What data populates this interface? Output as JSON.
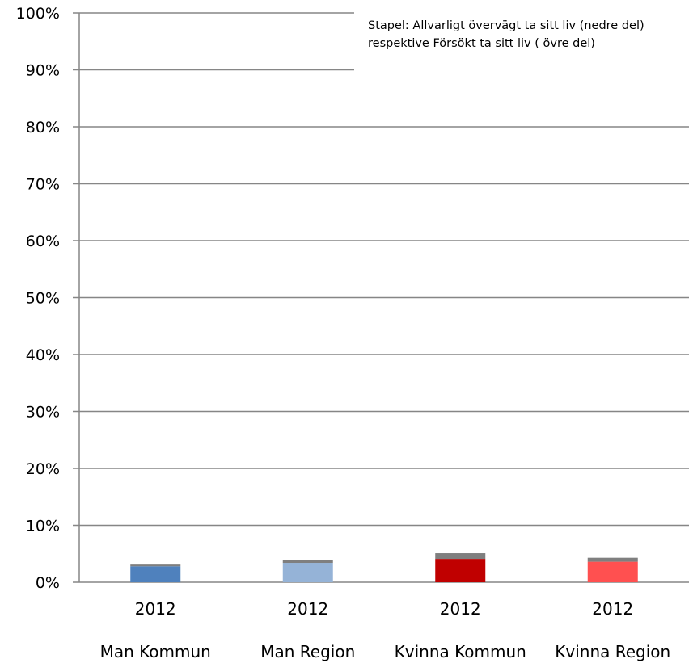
{
  "chart_data": {
    "type": "bar",
    "stacked": true,
    "categories": [
      "Man Kommun",
      "Man Region",
      "Kvinna Kommun",
      "Kvinna Region"
    ],
    "year_labels": [
      "2012",
      "2012",
      "2012",
      "2012"
    ],
    "series": [
      {
        "values": [
          2.8,
          3.4,
          4.1,
          3.6
        ],
        "colors": [
          "#4f81bd",
          "#95b3d7",
          "#c00000",
          "#ff5050"
        ]
      },
      {
        "values": [
          0.3,
          0.5,
          1.0,
          0.7
        ],
        "colors": [
          "#7f7f7f",
          "#7f7f7f",
          "#7f7f7f",
          "#7f7f7f"
        ]
      }
    ],
    "y_ticks": [
      "0%",
      "10%",
      "20%",
      "30%",
      "40%",
      "50%",
      "60%",
      "70%",
      "80%",
      "90%",
      "100%"
    ],
    "ylim": [
      0,
      100
    ],
    "grid": true,
    "annotation": "Stapel: Allvarligt övervägt ta sitt liv (nedre del)  respektive  Försökt ta sitt liv ( övre del)"
  }
}
